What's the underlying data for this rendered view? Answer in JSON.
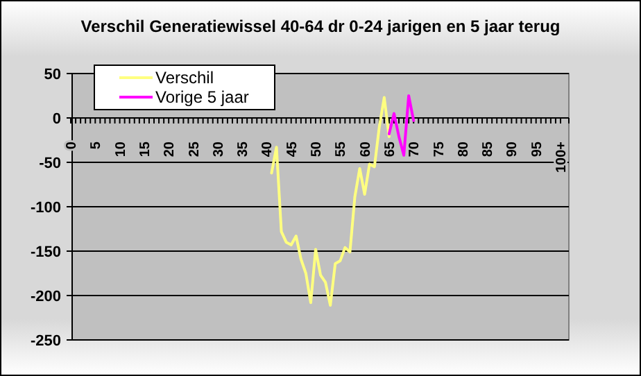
{
  "chart_data": {
    "type": "line",
    "title": "Verschil Generatiewissel 40-64 dr 0-24 jarigen en 5 jaar terug",
    "categories": [
      "0",
      null,
      null,
      null,
      null,
      "5",
      null,
      null,
      null,
      null,
      "10",
      null,
      null,
      null,
      null,
      "15",
      null,
      null,
      null,
      null,
      "20",
      null,
      null,
      null,
      null,
      "25",
      null,
      null,
      null,
      null,
      "30",
      null,
      null,
      null,
      null,
      "35",
      null,
      null,
      null,
      null,
      "40",
      null,
      null,
      null,
      null,
      "45",
      null,
      null,
      null,
      null,
      "50",
      null,
      null,
      null,
      null,
      "55",
      null,
      null,
      null,
      null,
      "60",
      null,
      null,
      null,
      null,
      "65",
      null,
      null,
      null,
      null,
      "70",
      null,
      null,
      null,
      null,
      "75",
      null,
      null,
      null,
      null,
      "80",
      null,
      null,
      null,
      null,
      "85",
      null,
      null,
      null,
      null,
      "90",
      null,
      null,
      null,
      null,
      "95",
      null,
      null,
      null,
      null,
      "100+"
    ],
    "series": [
      {
        "name": "Verschil",
        "color": "#ffff80",
        "values": [
          null,
          null,
          null,
          null,
          null,
          null,
          null,
          null,
          null,
          null,
          null,
          null,
          null,
          null,
          null,
          null,
          null,
          null,
          null,
          null,
          null,
          null,
          null,
          null,
          null,
          null,
          null,
          null,
          null,
          null,
          null,
          null,
          null,
          null,
          null,
          null,
          null,
          null,
          null,
          null,
          null,
          -62,
          -33,
          -128,
          -140,
          -143,
          -133,
          -159,
          -175,
          -208,
          -148,
          -177,
          -185,
          -211,
          -164,
          -161,
          -146,
          -151,
          -89,
          -57,
          -86,
          -52,
          -55,
          -10,
          23,
          -21,
          null,
          null,
          null,
          null,
          null,
          null,
          null,
          null,
          null,
          null,
          null,
          null,
          null,
          null,
          null,
          null,
          null,
          null,
          null,
          null,
          null,
          null,
          null,
          null,
          null,
          null,
          null,
          null,
          null,
          null,
          null,
          null,
          null,
          null,
          null
        ]
      },
      {
        "name": "Vorige 5 jaar",
        "color": "#ff00ff",
        "values": [
          null,
          null,
          null,
          null,
          null,
          null,
          null,
          null,
          null,
          null,
          null,
          null,
          null,
          null,
          null,
          null,
          null,
          null,
          null,
          null,
          null,
          null,
          null,
          null,
          null,
          null,
          null,
          null,
          null,
          null,
          null,
          null,
          null,
          null,
          null,
          null,
          null,
          null,
          null,
          null,
          null,
          null,
          null,
          null,
          null,
          null,
          null,
          null,
          null,
          null,
          null,
          null,
          null,
          null,
          null,
          null,
          null,
          null,
          null,
          null,
          null,
          null,
          null,
          null,
          null,
          -18,
          5,
          -21,
          -42,
          25,
          -3,
          null,
          null,
          null,
          null,
          null,
          null,
          null,
          null,
          null,
          null,
          null,
          null,
          null,
          null,
          null,
          null,
          null,
          null,
          null,
          null,
          null,
          null,
          null,
          null,
          null,
          null,
          null,
          null,
          null,
          null
        ]
      }
    ],
    "ylim": [
      -250,
      50
    ],
    "yticks": [
      50,
      0,
      -50,
      -100,
      -150,
      -200,
      -250
    ],
    "grid": "y",
    "legend": "top left",
    "marker": "none",
    "line_style": "solid"
  }
}
